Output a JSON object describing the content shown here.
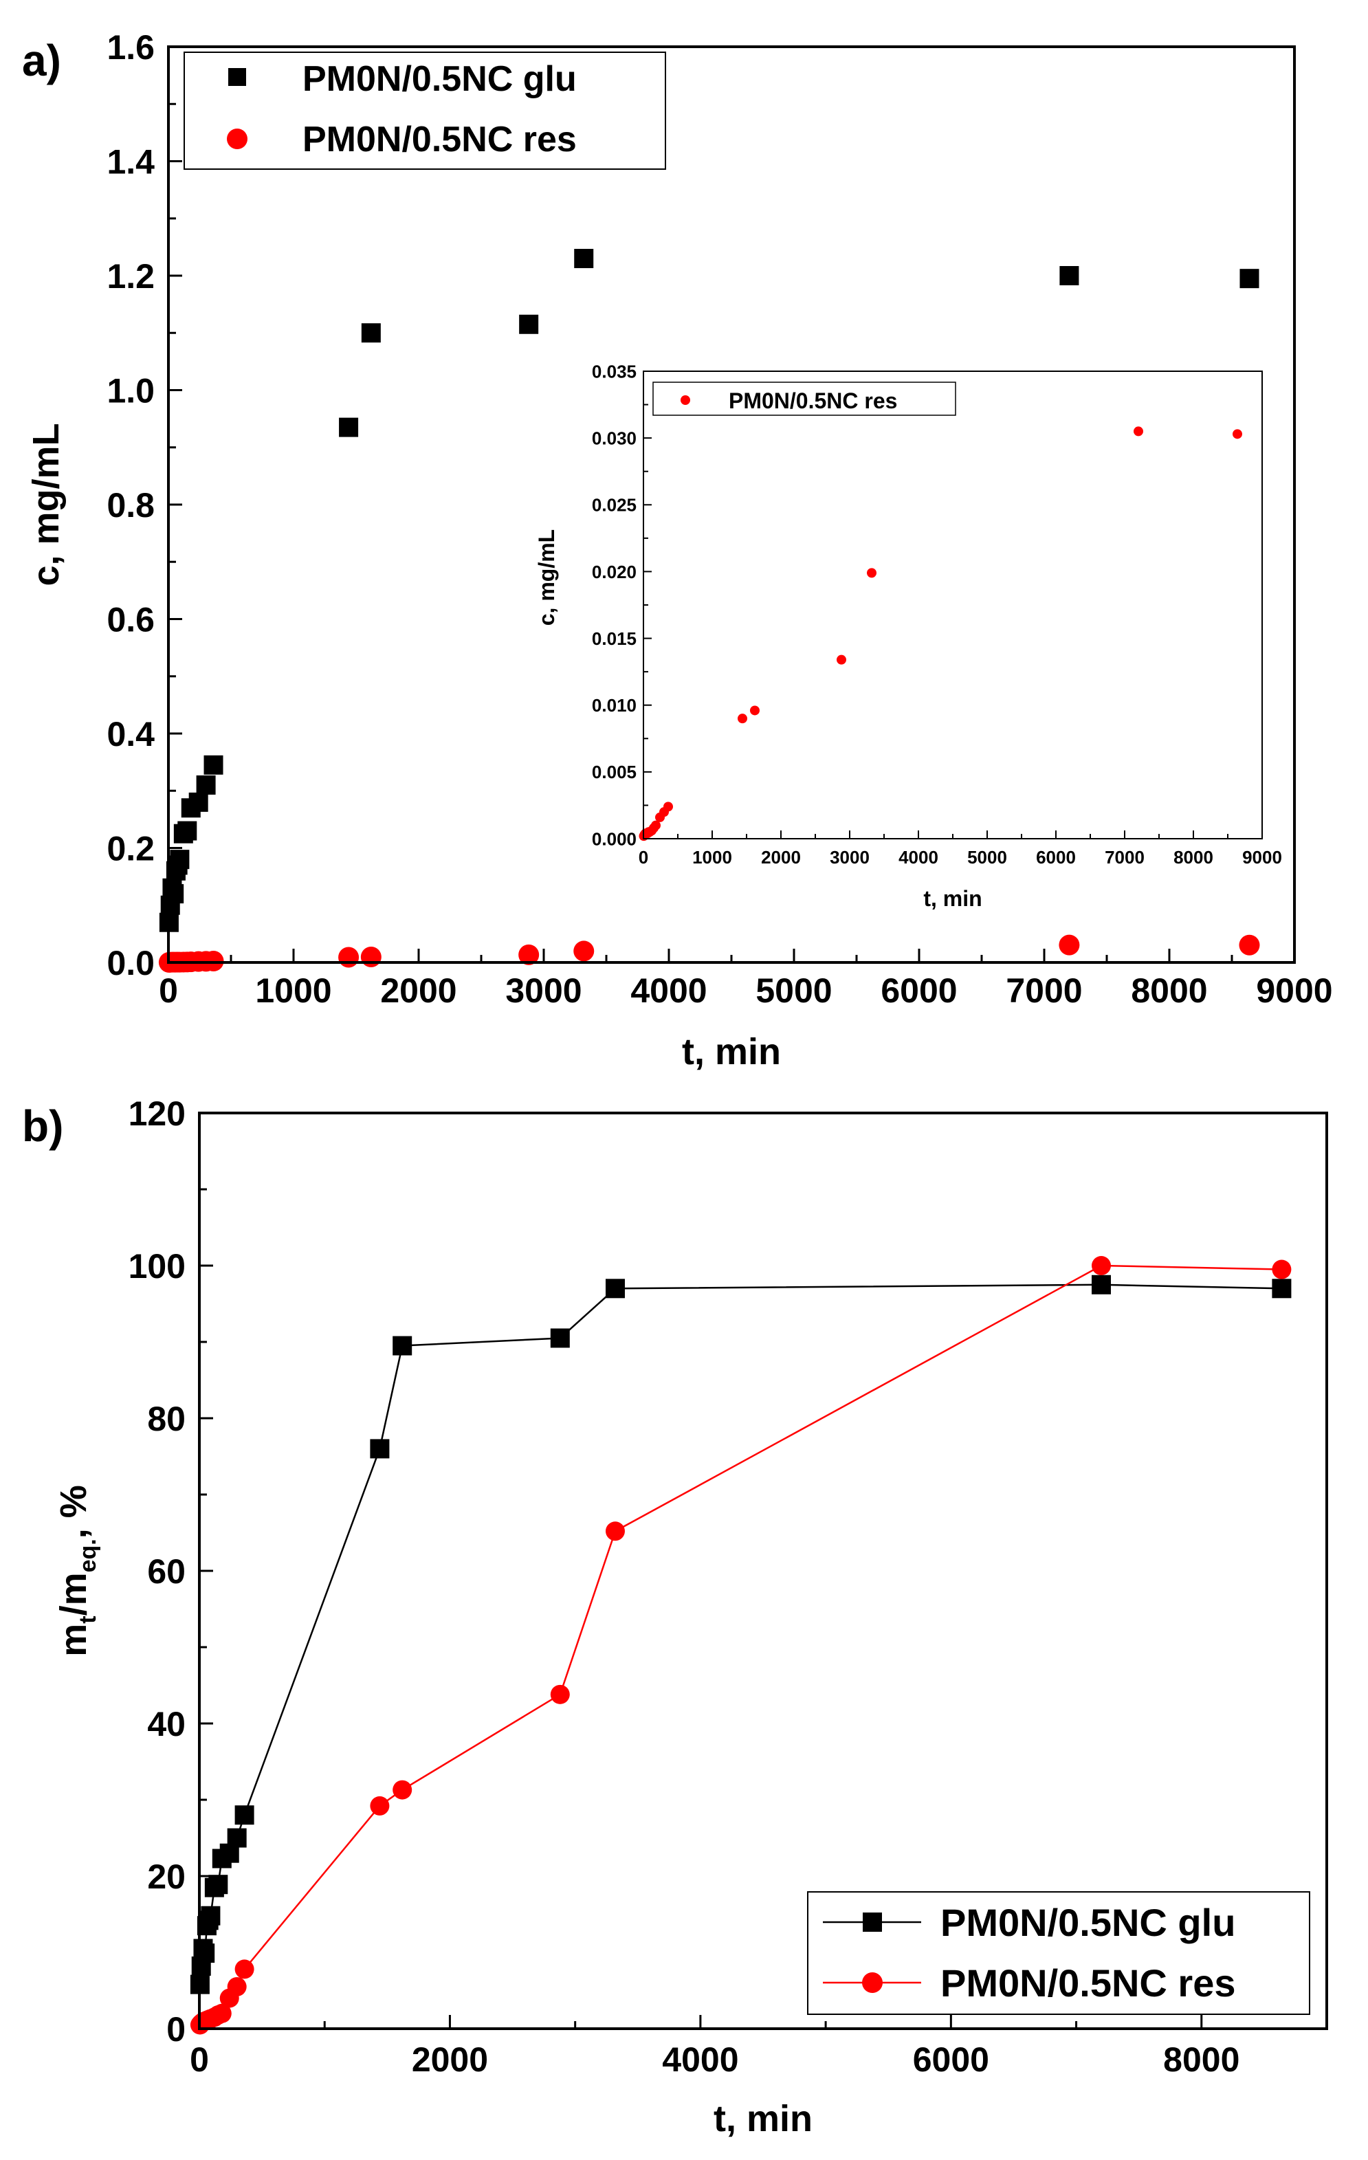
{
  "chart_data": [
    {
      "panel_label": "a)",
      "type": "scatter",
      "xlabel": "t, min",
      "ylabel": "c, mg/mL",
      "xlim": [
        0,
        9000
      ],
      "ylim": [
        0,
        1.6
      ],
      "xticks": [
        0,
        1000,
        2000,
        3000,
        4000,
        5000,
        6000,
        7000,
        8000,
        9000
      ],
      "yticks": [
        0.0,
        0.2,
        0.4,
        0.6,
        0.8,
        1.0,
        1.2,
        1.4,
        1.6
      ],
      "ytick_labels": [
        "0.0",
        "0.2",
        "0.4",
        "0.6",
        "0.8",
        "1.0",
        "1.2",
        "1.4",
        "1.6"
      ],
      "legend": "top-left",
      "series": [
        {
          "name": "PM0N/0.5NC glu",
          "marker": "square",
          "color": "#000000",
          "x": [
            5,
            15,
            30,
            45,
            60,
            75,
            90,
            120,
            150,
            180,
            240,
            300,
            360,
            1440,
            1620,
            2880,
            3320,
            7200,
            8640
          ],
          "y": [
            0.07,
            0.1,
            0.13,
            0.12,
            0.16,
            0.17,
            0.18,
            0.225,
            0.23,
            0.27,
            0.28,
            0.31,
            0.345,
            0.935,
            1.1,
            1.115,
            1.23,
            1.2,
            1.195
          ]
        },
        {
          "name": "PM0N/0.5NC res",
          "marker": "circle",
          "color": "#ff0000",
          "x": [
            5,
            15,
            30,
            45,
            60,
            75,
            90,
            120,
            150,
            180,
            240,
            300,
            360,
            1440,
            1620,
            2880,
            3320,
            7200,
            8640
          ],
          "y": [
            0.0002,
            0.0003,
            0.0004,
            0.0004,
            0.0004,
            0.0005,
            0.0005,
            0.0006,
            0.0008,
            0.001,
            0.0016,
            0.002,
            0.0024,
            0.009,
            0.0096,
            0.0134,
            0.0199,
            0.0305,
            0.0303
          ]
        }
      ],
      "inset": {
        "type": "scatter",
        "xlabel": "t, min",
        "ylabel": "c, mg/mL",
        "xlim": [
          0,
          9000
        ],
        "ylim": [
          0,
          0.035
        ],
        "xticks": [
          0,
          1000,
          2000,
          3000,
          4000,
          5000,
          6000,
          7000,
          8000,
          9000
        ],
        "yticks": [
          0,
          0.005,
          0.01,
          0.015,
          0.02,
          0.025,
          0.03,
          0.035
        ],
        "ytick_labels": [
          "0.000",
          "0.005",
          "0.010",
          "0.015",
          "0.020",
          "0.025",
          "0.030",
          "0.035"
        ],
        "legend": "top-left",
        "series": [
          {
            "name": "PM0N/0.5NC res",
            "marker": "circle",
            "color": "#ff0000",
            "x": [
              5,
              15,
              30,
              45,
              60,
              75,
              90,
              120,
              150,
              180,
              240,
              300,
              360,
              1440,
              1620,
              2880,
              3320,
              7200,
              8640
            ],
            "y": [
              0.0002,
              0.0003,
              0.0004,
              0.0004,
              0.0004,
              0.0005,
              0.0005,
              0.0006,
              0.0008,
              0.001,
              0.0016,
              0.002,
              0.0024,
              0.009,
              0.0096,
              0.0134,
              0.0199,
              0.0305,
              0.0303
            ]
          }
        ]
      }
    },
    {
      "panel_label": "b)",
      "type": "line",
      "xlabel": "t, min",
      "ylabel_main": "m",
      "ylabel_sub1": "t",
      "ylabel_mid": "/m",
      "ylabel_sub2": "eq.",
      "ylabel_end": ", %",
      "xlim": [
        0,
        9000
      ],
      "ylim": [
        0,
        120
      ],
      "xticks": [
        0,
        2000,
        4000,
        6000,
        8000
      ],
      "yticks": [
        0,
        20,
        40,
        60,
        80,
        100,
        120
      ],
      "ytick_labels": [
        "0",
        "20",
        "40",
        "60",
        "80",
        "100",
        "120"
      ],
      "legend": "bottom-right",
      "series": [
        {
          "name": "PM0N/0.5NC glu",
          "marker": "square",
          "color": "#000000",
          "x": [
            5,
            15,
            30,
            45,
            60,
            75,
            90,
            120,
            150,
            180,
            240,
            300,
            360,
            1440,
            1620,
            2880,
            3320,
            7200,
            8640
          ],
          "y": [
            5.8,
            8.2,
            10.5,
            9.9,
            13.5,
            14.2,
            14.8,
            18.5,
            18.9,
            22.3,
            23,
            25,
            28,
            76,
            89.5,
            90.5,
            97,
            97.5,
            97
          ]
        },
        {
          "name": "PM0N/0.5NC res",
          "marker": "circle",
          "color": "#ff0000",
          "x": [
            5,
            15,
            30,
            45,
            60,
            75,
            90,
            120,
            150,
            180,
            240,
            300,
            360,
            1440,
            1620,
            2880,
            3320,
            7200,
            8640
          ],
          "y": [
            0.5,
            0.7,
            0.9,
            1.0,
            1.1,
            1.2,
            1.3,
            1.5,
            1.8,
            2.0,
            4.0,
            5.5,
            7.8,
            29.2,
            31.3,
            43.8,
            65.2,
            100,
            99.5
          ]
        }
      ]
    }
  ]
}
